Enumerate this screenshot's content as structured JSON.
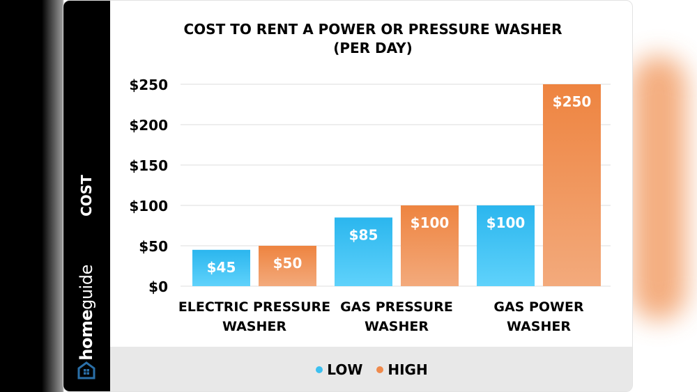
{
  "chart_data": {
    "type": "bar",
    "title": "COST TO RENT A POWER OR PRESSURE WASHER",
    "subtitle": "(PER DAY)",
    "ylabel": "COST",
    "xlabel": "",
    "categories": [
      [
        "ELECTRIC PRESSURE",
        "WASHER"
      ],
      [
        "GAS PRESSURE",
        "WASHER"
      ],
      [
        "GAS POWER",
        "WASHER"
      ]
    ],
    "series": [
      {
        "name": "LOW",
        "values": [
          45,
          85,
          100
        ],
        "labels": [
          "$45",
          "$85",
          "$100"
        ],
        "color": "#3cc0f0"
      },
      {
        "name": "HIGH",
        "values": [
          50,
          100,
          250
        ],
        "labels": [
          "$50",
          "$100",
          "$250"
        ],
        "color": "#ef8a4c"
      }
    ],
    "ylim": [
      0,
      250
    ],
    "yticks": [
      "$0",
      "$50",
      "$100",
      "$150",
      "$200",
      "$250"
    ],
    "grid": true,
    "legend_position": "bottom"
  },
  "brand": {
    "logo": "homeguide",
    "logo_bold": "home",
    "logo_light": "guide"
  }
}
